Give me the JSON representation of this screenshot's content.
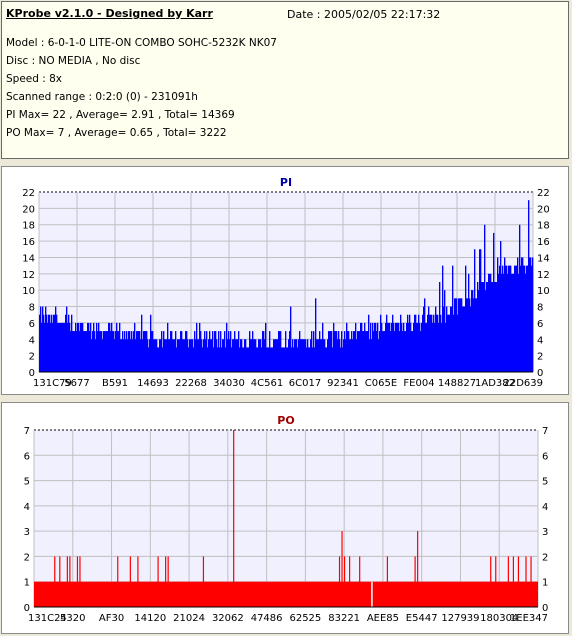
{
  "header": {
    "title": "KProbe v2.1.0 - Designed by Karr",
    "date": "Date : 2005/02/05 22:17:32",
    "model": "Model : 6-0-1-0 LITE-ON COMBO SOHC-5232K NK07",
    "disc": "Disc : NO MEDIA , No disc",
    "speed": "Speed : 8x",
    "scanned_range": "Scanned range : 0:2:0 (0) - 231091h",
    "pi_stats": "PI Max= 22 , Average= 2.91 , Total= 14369",
    "po_stats": "PO Max= 7 , Average= 0.65 , Total= 3222"
  },
  "colors": {
    "pi_bar": "#0000ff",
    "po_bar": "#ff0000",
    "plot_bg": "#f0f0ff",
    "grid": "#c0c0c0",
    "dashed_grid": "#000000"
  },
  "chart_data": [
    {
      "type": "bar",
      "title": "PI",
      "ylim": [
        0,
        22
      ],
      "yticks": [
        0,
        2,
        4,
        6,
        8,
        10,
        12,
        14,
        16,
        18,
        20,
        22
      ],
      "xtick_labels": [
        "131C79",
        "5677",
        "B591",
        "14693",
        "22268",
        "34030",
        "4C561",
        "6C017",
        "92341",
        "C065E",
        "FE004",
        "148827",
        "1AD382",
        "22D639"
      ],
      "grid": true,
      "profile": [
        [
          0.0,
          6.5,
          10
        ],
        [
          0.05,
          5.5,
          8
        ],
        [
          0.1,
          5,
          7
        ],
        [
          0.2,
          4,
          7
        ],
        [
          0.3,
          3.5,
          6
        ],
        [
          0.45,
          3.5,
          6
        ],
        [
          0.55,
          3.5,
          9
        ],
        [
          0.62,
          4,
          6
        ],
        [
          0.68,
          5,
          7
        ],
        [
          0.74,
          5.5,
          9
        ],
        [
          0.78,
          6,
          10
        ],
        [
          0.82,
          7,
          13
        ],
        [
          0.86,
          8,
          15
        ],
        [
          0.9,
          10,
          18
        ],
        [
          0.94,
          12,
          21
        ],
        [
          1.0,
          13,
          22
        ]
      ]
    },
    {
      "type": "bar",
      "title": "PO",
      "ylim": [
        0,
        7
      ],
      "yticks": [
        0,
        1,
        2,
        3,
        4,
        5,
        6,
        7
      ],
      "xtick_labels": [
        "131C24",
        "5320",
        "AF30",
        "14120",
        "21024",
        "32062",
        "47486",
        "62525",
        "83221",
        "AEE85",
        "E5447",
        "127939",
        "180304",
        "1EE347"
      ],
      "grid": true,
      "baseline": 1,
      "spikes": [
        [
          0.04,
          2
        ],
        [
          0.05,
          2
        ],
        [
          0.065,
          2
        ],
        [
          0.07,
          2
        ],
        [
          0.085,
          2
        ],
        [
          0.09,
          2
        ],
        [
          0.165,
          2
        ],
        [
          0.19,
          2
        ],
        [
          0.205,
          2
        ],
        [
          0.245,
          2
        ],
        [
          0.26,
          2
        ],
        [
          0.265,
          2
        ],
        [
          0.335,
          2
        ],
        [
          0.395,
          7
        ],
        [
          0.605,
          2
        ],
        [
          0.61,
          3
        ],
        [
          0.615,
          2
        ],
        [
          0.625,
          2
        ],
        [
          0.645,
          2
        ],
        [
          0.7,
          2
        ],
        [
          0.755,
          2
        ],
        [
          0.76,
          3
        ],
        [
          0.905,
          2
        ],
        [
          0.915,
          2
        ],
        [
          0.94,
          2
        ],
        [
          0.95,
          2
        ],
        [
          0.96,
          2
        ],
        [
          0.975,
          2
        ],
        [
          0.985,
          2
        ]
      ],
      "gaps": [
        0.669
      ]
    }
  ]
}
